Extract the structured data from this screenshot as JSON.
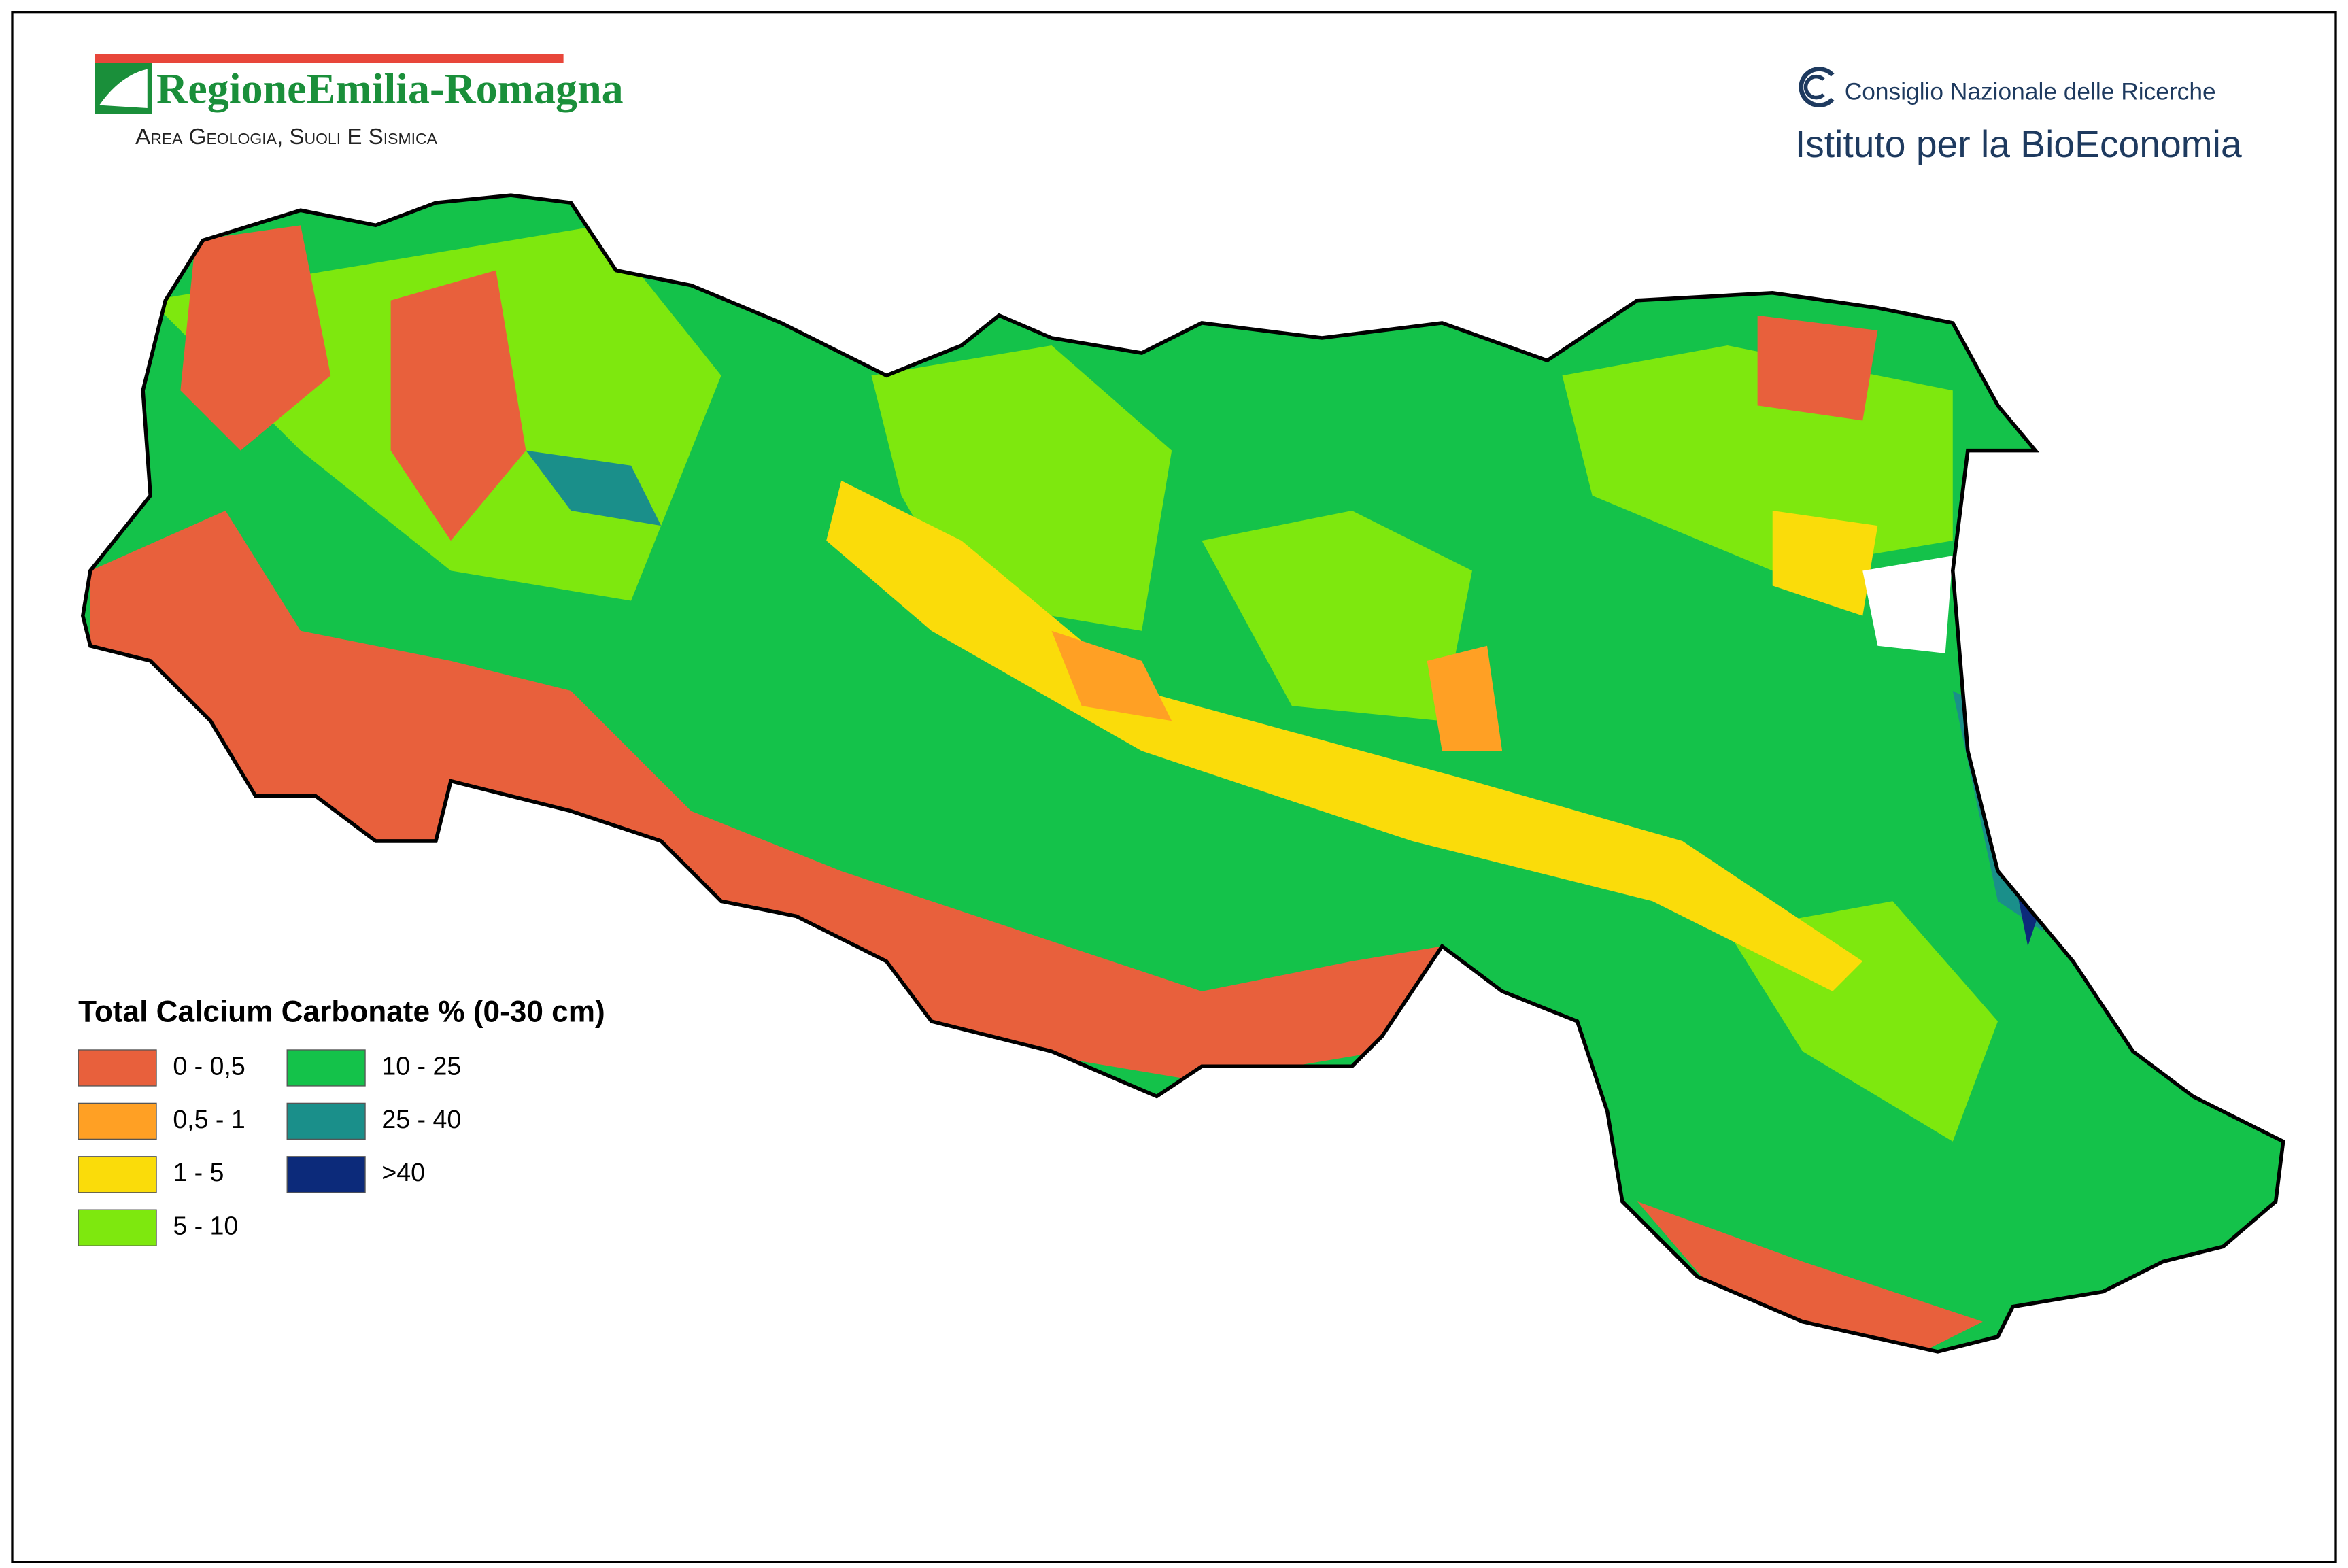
{
  "header": {
    "organization": "RegioneEmilia-Romagna",
    "department": "Area Geologia, Suoli e Sismica",
    "institute_parent": "Consiglio Nazionale delle Ricerche",
    "institute": "Istituto per la BioEconomia"
  },
  "legend": {
    "title": "Total Calcium Carbonate % (0-30 cm)",
    "items": [
      {
        "label": "0 - 0,5",
        "color": "#e8603c"
      },
      {
        "label": "0,5 - 1",
        "color": "#ffa024"
      },
      {
        "label": "1 - 5",
        "color": "#fadc0a"
      },
      {
        "label": "5 - 10",
        "color": "#7ee80e"
      },
      {
        "label": "10 - 25",
        "color": "#14c24a"
      },
      {
        "label": "25 - 40",
        "color": "#1a8f8a"
      },
      {
        "label": ">40",
        "color": "#0c2a7a"
      }
    ]
  }
}
